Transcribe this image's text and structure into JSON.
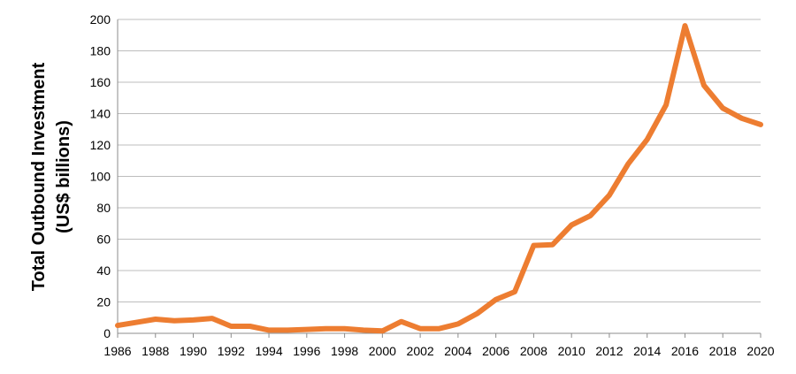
{
  "chart_data": {
    "type": "line",
    "title": "",
    "xlabel": "",
    "ylabel_line1": "Total Outbound Investment",
    "ylabel_line2": "(US$ billions)",
    "xlim": [
      1986,
      2020
    ],
    "ylim": [
      0,
      200
    ],
    "x_ticks": [
      1986,
      1988,
      1990,
      1992,
      1994,
      1996,
      1998,
      2000,
      2002,
      2004,
      2006,
      2008,
      2010,
      2012,
      2014,
      2016,
      2018,
      2020
    ],
    "y_ticks": [
      0,
      20,
      40,
      60,
      80,
      100,
      120,
      140,
      160,
      180,
      200
    ],
    "grid": "horizontal",
    "line_color": "#ED7D31",
    "series": [
      {
        "x": [
          1986,
          1987,
          1988,
          1989,
          1990,
          1991,
          1992,
          1993,
          1994,
          1995,
          1996,
          1997,
          1998,
          1999,
          2000,
          2001,
          2002,
          2003,
          2004,
          2005,
          2006,
          2007,
          2008,
          2009,
          2010,
          2011,
          2012,
          2013,
          2014,
          2015,
          2016,
          2017,
          2018,
          2019,
          2020
        ],
        "values": [
          5,
          7,
          9,
          8,
          8.5,
          9.5,
          4.5,
          4.5,
          2,
          2,
          2.5,
          3,
          3,
          2,
          1.5,
          7.5,
          3,
          3,
          6,
          12.5,
          21.5,
          26.5,
          56,
          56.5,
          69,
          75,
          88,
          108,
          123.5,
          145.5,
          196,
          158,
          143.5,
          137,
          133
        ]
      }
    ]
  }
}
